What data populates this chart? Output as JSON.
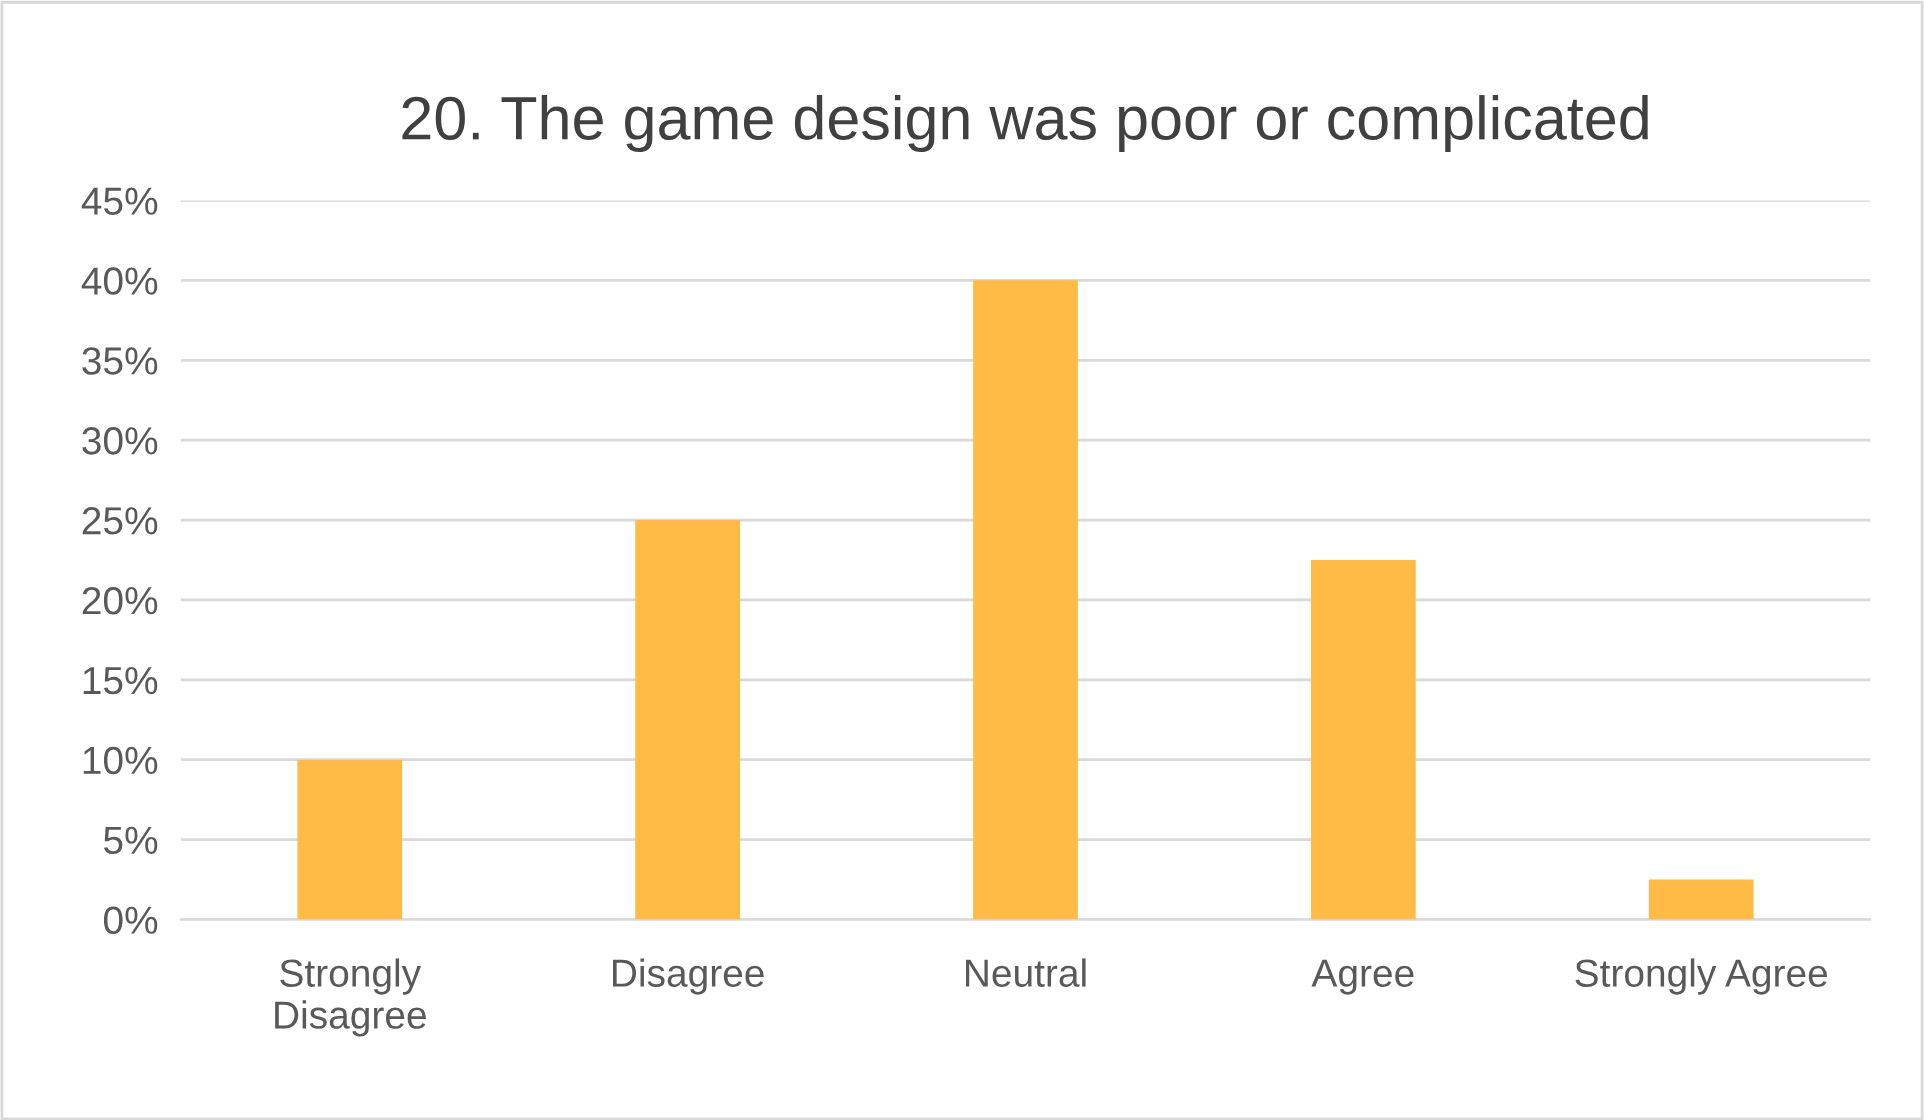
{
  "chart_data": {
    "type": "bar",
    "title": "20. The game design was poor or complicated",
    "categories": [
      "Strongly\nDisagree",
      "Disagree",
      "Neutral",
      "Agree",
      "Strongly Agree"
    ],
    "values": [
      10,
      25,
      40,
      22.5,
      2.5
    ],
    "color": "#ffbb45",
    "ylim": [
      0,
      45
    ],
    "yticks": [
      {
        "value": 0,
        "label": "0%"
      },
      {
        "value": 5,
        "label": "5%"
      },
      {
        "value": 10,
        "label": "10%"
      },
      {
        "value": 15,
        "label": "15%"
      },
      {
        "value": 20,
        "label": "20%"
      },
      {
        "value": 25,
        "label": "25%"
      },
      {
        "value": 30,
        "label": "30%"
      },
      {
        "value": 35,
        "label": "35%"
      },
      {
        "value": 40,
        "label": "40%"
      },
      {
        "value": 45,
        "label": "45%"
      }
    ],
    "grid": "y"
  }
}
